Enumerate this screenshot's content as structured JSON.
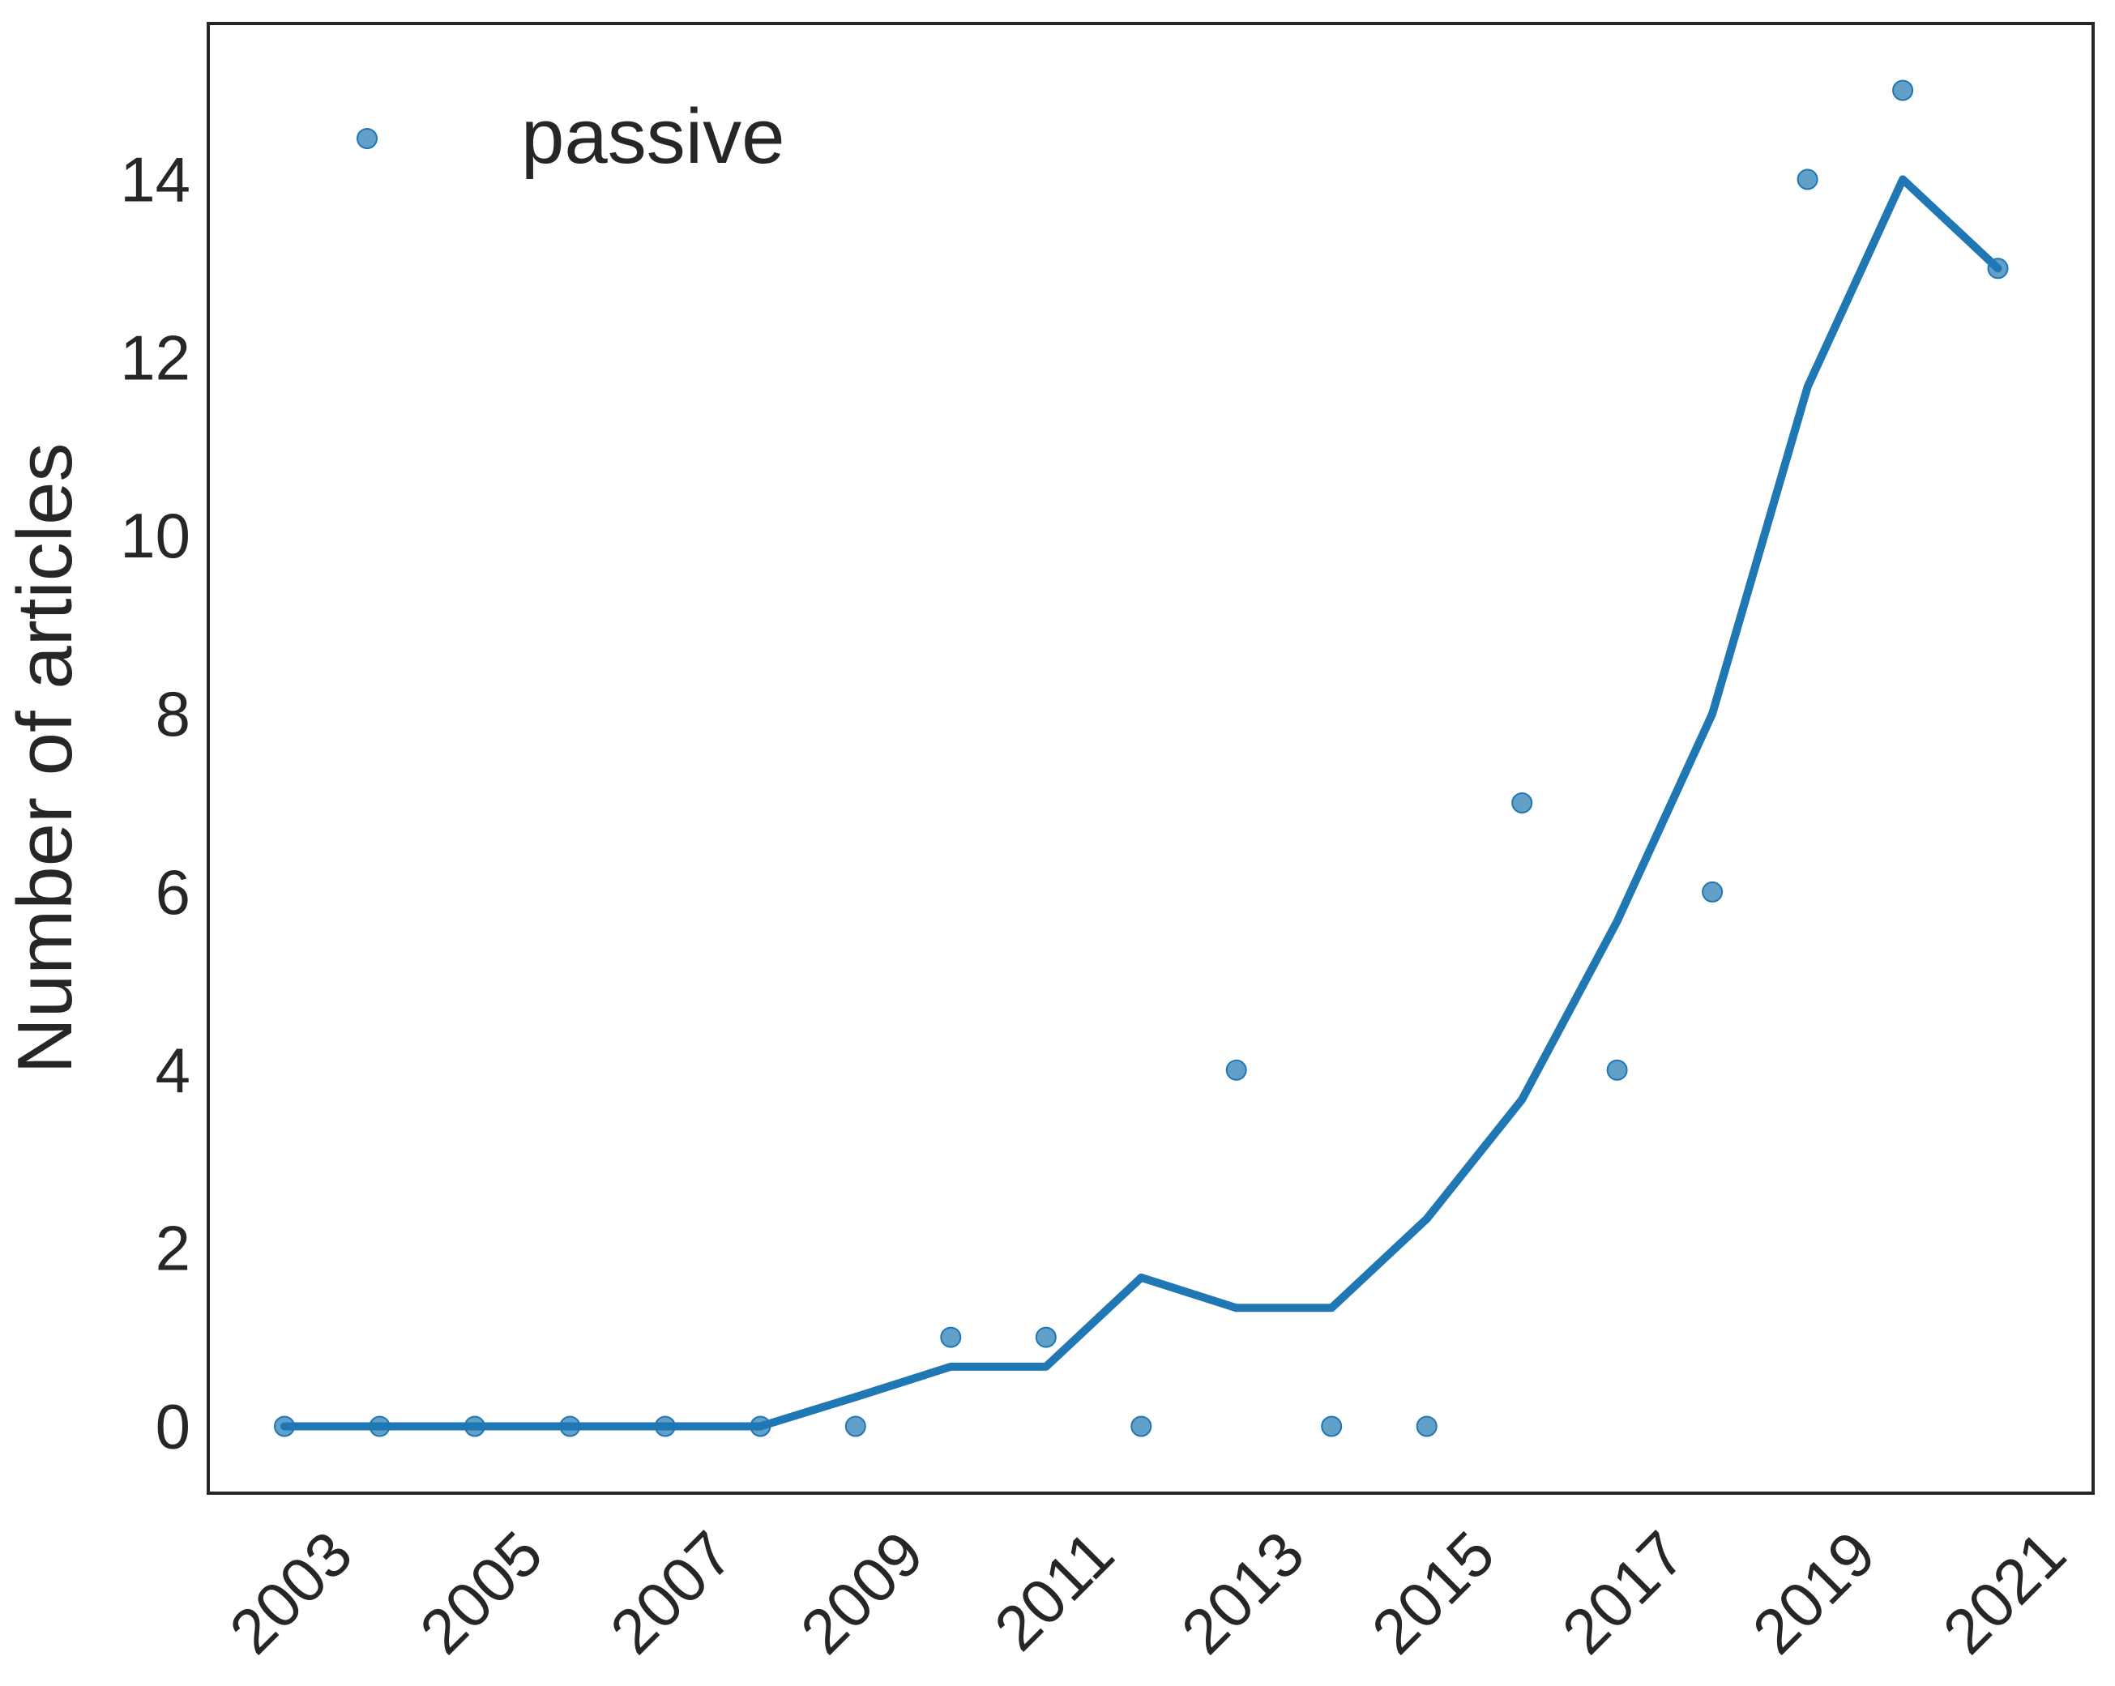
{
  "chart_data": {
    "type": "scatter",
    "title": "",
    "xlabel": "",
    "ylabel": "Number of articles",
    "x_ticks": [
      "2003",
      "2005",
      "2007",
      "2009",
      "2011",
      "2013",
      "2015",
      "2017",
      "2019",
      "2021"
    ],
    "y_ticks": [
      "0",
      "2",
      "4",
      "6",
      "8",
      "10",
      "12",
      "14"
    ],
    "xlim": [
      2002.2,
      2022.0
    ],
    "ylim": [
      -0.75,
      15.75
    ],
    "grid": false,
    "legend_position": "top-left",
    "series": [
      {
        "name": "passive",
        "kind": "scatter",
        "color": "#1f77b4",
        "x": [
          2003,
          2004,
          2005,
          2006,
          2007,
          2008,
          2009,
          2010,
          2011,
          2012,
          2013,
          2014,
          2015,
          2016,
          2017,
          2018,
          2019,
          2020,
          2021
        ],
        "y": [
          0,
          0,
          0,
          0,
          0,
          0,
          0,
          1,
          1,
          0,
          4,
          0,
          0,
          7,
          4,
          6,
          14,
          15,
          13
        ]
      },
      {
        "kind": "line",
        "color": "#1f77b4",
        "x": [
          2003,
          2004,
          2005,
          2006,
          2007,
          2008,
          2009,
          2010,
          2011,
          2012,
          2013,
          2014,
          2015,
          2016,
          2017,
          2018,
          2019,
          2020,
          2021
        ],
        "y": [
          0,
          0,
          0,
          0,
          0,
          0,
          0.33,
          0.67,
          0.67,
          1.67,
          1.33,
          1.33,
          2.33,
          3.67,
          5.67,
          8.0,
          11.67,
          14.0,
          13.0
        ]
      }
    ]
  }
}
